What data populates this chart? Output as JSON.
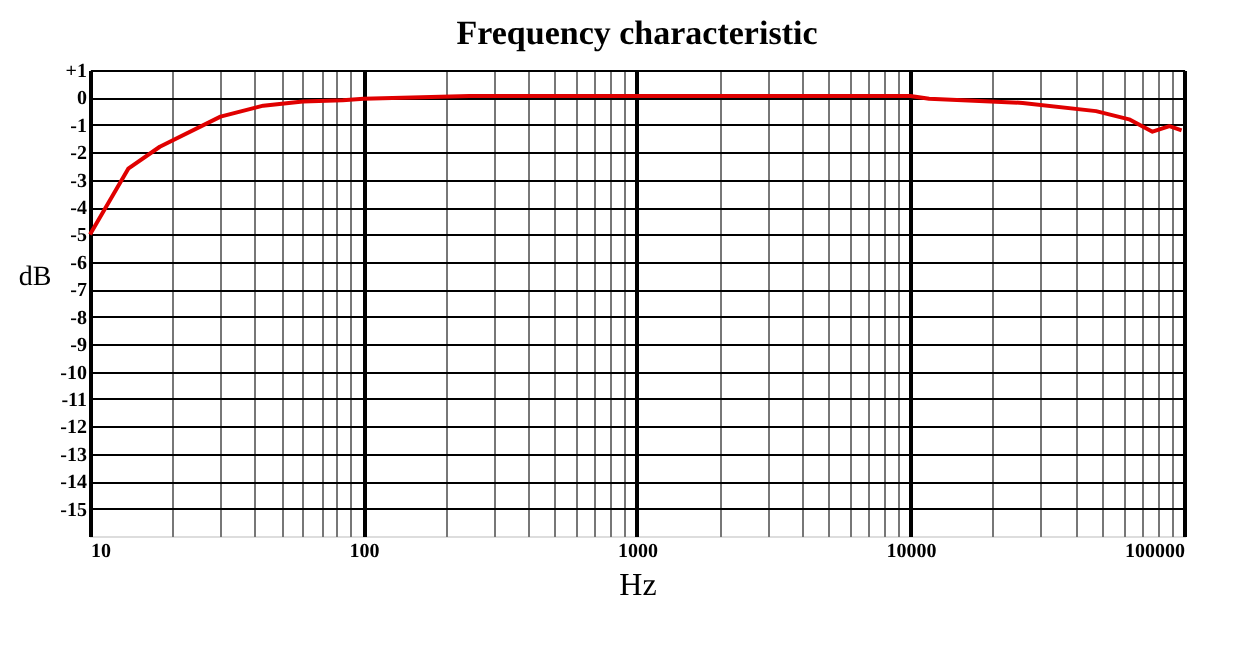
{
  "chart_data": {
    "type": "line",
    "title": "Frequency  characteristic",
    "xlabel": "Hz",
    "ylabel": "dB",
    "log": "x",
    "grid": true,
    "marker": "none",
    "line_style": "solid",
    "xlim": [
      10,
      100000
    ],
    "ylim": [
      -16,
      1
    ],
    "xticks": [
      10,
      {
        "value": 20,
        "label": null
      },
      {
        "value": 30,
        "label": null
      },
      {
        "value": 40,
        "label": null
      },
      {
        "value": 50,
        "label": null
      },
      {
        "value": 60,
        "label": null
      },
      {
        "value": 70,
        "label": null
      },
      {
        "value": 80,
        "label": null
      },
      {
        "value": 90,
        "label": null
      },
      100,
      {
        "value": 200,
        "label": null
      },
      {
        "value": 300,
        "label": null
      },
      {
        "value": 400,
        "label": null
      },
      {
        "value": 500,
        "label": null
      },
      {
        "value": 600,
        "label": null
      },
      {
        "value": 700,
        "label": null
      },
      {
        "value": 800,
        "label": null
      },
      {
        "value": 900,
        "label": null
      },
      1000,
      {
        "value": 2000,
        "label": null
      },
      {
        "value": 3000,
        "label": null
      },
      {
        "value": 4000,
        "label": null
      },
      {
        "value": 5000,
        "label": null
      },
      {
        "value": 6000,
        "label": null
      },
      {
        "value": 7000,
        "label": null
      },
      {
        "value": 8000,
        "label": null
      },
      {
        "value": 9000,
        "label": null
      },
      10000,
      {
        "value": 20000,
        "label": null
      },
      {
        "value": 30000,
        "label": null
      },
      {
        "value": 40000,
        "label": null
      },
      {
        "value": 50000,
        "label": null
      },
      {
        "value": 60000,
        "label": null
      },
      {
        "value": 70000,
        "label": null
      },
      {
        "value": 80000,
        "label": null
      },
      {
        "value": 90000,
        "label": null
      },
      100000
    ],
    "yticks": [
      {
        "value": 1,
        "label": "+1"
      },
      0,
      -1,
      -2,
      -3,
      -4,
      -5,
      -6,
      -7,
      -8,
      -9,
      -10,
      -11,
      -12,
      -13,
      -14,
      -15
    ],
    "series": [
      {
        "color": "#e00000",
        "x": [
          10,
          13.8,
          18,
          30,
          43,
          60,
          84,
          100,
          244,
          10000,
          11700,
          25700,
          47700,
          63000,
          76700,
          88500,
          98000
        ],
        "values": [
          -5,
          -2.6,
          -1.8,
          -0.7,
          -0.3,
          -0.15,
          -0.1,
          -0.05,
          0.05,
          0.05,
          -0.05,
          -0.2,
          -0.5,
          -0.8,
          -1.25,
          -1.05,
          -1.2
        ]
      }
    ]
  }
}
